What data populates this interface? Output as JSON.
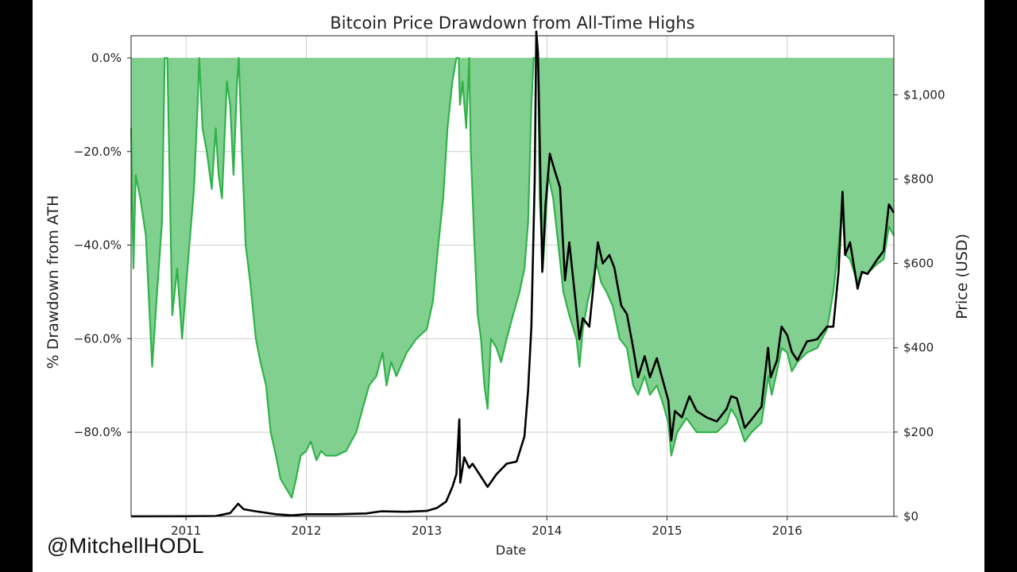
{
  "watermark": "@MitchellHODL",
  "chart_data": {
    "type": "area",
    "title": "Bitcoin Price Drawdown from All-Time Highs",
    "xlabel": "Date",
    "ylabel": "% Drawdown from ATH",
    "ylabel_right": "Price (USD)",
    "x_range": [
      "2010-07-18",
      "2016-11-20"
    ],
    "xticks": [
      "2011",
      "2012",
      "2013",
      "2014",
      "2015",
      "2016"
    ],
    "ylim": [
      -98,
      0
    ],
    "yticks": [
      "0.0%",
      "−20.0%",
      "−40.0%",
      "−60.0%",
      "−80.0%"
    ],
    "ylim_right": [
      0,
      1140
    ],
    "yticks_right": [
      "$0",
      "$200",
      "$400",
      "$600",
      "$800",
      "$1,000"
    ],
    "grid": true,
    "colors": {
      "fill": "#82d08f",
      "drawdown_line": "#2fb24a",
      "price_line": "#000000"
    },
    "series": [
      {
        "role": "drawdown",
        "axis": "left",
        "points": [
          [
            "2010-07-18",
            -15
          ],
          [
            "2010-07-25",
            -45
          ],
          [
            "2010-08-01",
            -25
          ],
          [
            "2010-08-15",
            -30
          ],
          [
            "2010-09-01",
            -38
          ],
          [
            "2010-09-20",
            -66
          ],
          [
            "2010-10-05",
            -50
          ],
          [
            "2010-10-20",
            -35
          ],
          [
            "2010-10-28",
            0
          ],
          [
            "2010-11-05",
            0
          ],
          [
            "2010-11-20",
            -55
          ],
          [
            "2010-12-05",
            -45
          ],
          [
            "2010-12-20",
            -60
          ],
          [
            "2011-01-05",
            -45
          ],
          [
            "2011-01-25",
            -28
          ],
          [
            "2011-02-05",
            -10
          ],
          [
            "2011-02-10",
            0
          ],
          [
            "2011-02-20",
            -15
          ],
          [
            "2011-03-05",
            -20
          ],
          [
            "2011-03-20",
            -28
          ],
          [
            "2011-04-01",
            -15
          ],
          [
            "2011-04-10",
            -25
          ],
          [
            "2011-04-20",
            -30
          ],
          [
            "2011-05-05",
            -5
          ],
          [
            "2011-05-15",
            -10
          ],
          [
            "2011-05-25",
            -25
          ],
          [
            "2011-06-05",
            -5
          ],
          [
            "2011-06-10",
            0
          ],
          [
            "2011-06-20",
            -20
          ],
          [
            "2011-07-01",
            -40
          ],
          [
            "2011-07-15",
            -48
          ],
          [
            "2011-08-01",
            -60
          ],
          [
            "2011-08-15",
            -65
          ],
          [
            "2011-09-01",
            -70
          ],
          [
            "2011-09-15",
            -80
          ],
          [
            "2011-10-01",
            -85
          ],
          [
            "2011-10-15",
            -90
          ],
          [
            "2011-11-01",
            -92
          ],
          [
            "2011-11-18",
            -94
          ],
          [
            "2011-12-01",
            -90
          ],
          [
            "2011-12-15",
            -85
          ],
          [
            "2012-01-01",
            -84
          ],
          [
            "2012-01-15",
            -82
          ],
          [
            "2012-02-01",
            -86
          ],
          [
            "2012-02-15",
            -84
          ],
          [
            "2012-03-01",
            -85
          ],
          [
            "2012-04-01",
            -85
          ],
          [
            "2012-05-01",
            -84
          ],
          [
            "2012-06-01",
            -80
          ],
          [
            "2012-06-20",
            -75
          ],
          [
            "2012-07-10",
            -70
          ],
          [
            "2012-08-01",
            -68
          ],
          [
            "2012-08-20",
            -63
          ],
          [
            "2012-09-01",
            -70
          ],
          [
            "2012-09-15",
            -65
          ],
          [
            "2012-10-01",
            -68
          ],
          [
            "2012-11-01",
            -63
          ],
          [
            "2012-12-01",
            -60
          ],
          [
            "2013-01-01",
            -58
          ],
          [
            "2013-01-20",
            -52
          ],
          [
            "2013-02-05",
            -40
          ],
          [
            "2013-02-20",
            -30
          ],
          [
            "2013-03-05",
            -15
          ],
          [
            "2013-03-20",
            -5
          ],
          [
            "2013-04-01",
            0
          ],
          [
            "2013-04-08",
            0
          ],
          [
            "2013-04-12",
            -10
          ],
          [
            "2013-04-20",
            -5
          ],
          [
            "2013-05-01",
            -15
          ],
          [
            "2013-05-10",
            0
          ],
          [
            "2013-05-15",
            -20
          ],
          [
            "2013-05-25",
            -38
          ],
          [
            "2013-06-05",
            -55
          ],
          [
            "2013-06-15",
            -60
          ],
          [
            "2013-06-25",
            -70
          ],
          [
            "2013-07-05",
            -75
          ],
          [
            "2013-07-15",
            -60
          ],
          [
            "2013-08-01",
            -62
          ],
          [
            "2013-08-15",
            -65
          ],
          [
            "2013-09-01",
            -60
          ],
          [
            "2013-09-20",
            -55
          ],
          [
            "2013-10-10",
            -50
          ],
          [
            "2013-10-25",
            -45
          ],
          [
            "2013-11-05",
            -35
          ],
          [
            "2013-11-15",
            -10
          ],
          [
            "2013-11-22",
            0
          ],
          [
            "2013-12-05",
            0
          ],
          [
            "2013-12-10",
            -30
          ],
          [
            "2013-12-20",
            -45
          ],
          [
            "2014-01-05",
            -25
          ],
          [
            "2014-01-20",
            -30
          ],
          [
            "2014-02-05",
            -40
          ],
          [
            "2014-02-20",
            -50
          ],
          [
            "2014-03-10",
            -55
          ],
          [
            "2014-04-01",
            -60
          ],
          [
            "2014-04-10",
            -66
          ],
          [
            "2014-04-20",
            -58
          ],
          [
            "2014-05-05",
            -52
          ],
          [
            "2014-06-01",
            -44
          ],
          [
            "2014-06-15",
            -48
          ],
          [
            "2014-07-01",
            -50
          ],
          [
            "2014-07-20",
            -53
          ],
          [
            "2014-08-10",
            -60
          ],
          [
            "2014-09-01",
            -62
          ],
          [
            "2014-09-20",
            -70
          ],
          [
            "2014-10-05",
            -72
          ],
          [
            "2014-10-25",
            -68
          ],
          [
            "2014-11-10",
            -72
          ],
          [
            "2014-12-01",
            -70
          ],
          [
            "2014-12-20",
            -74
          ],
          [
            "2015-01-05",
            -78
          ],
          [
            "2015-01-14",
            -85
          ],
          [
            "2015-02-01",
            -80
          ],
          [
            "2015-03-01",
            -77
          ],
          [
            "2015-04-01",
            -80
          ],
          [
            "2015-05-01",
            -80
          ],
          [
            "2015-06-01",
            -80
          ],
          [
            "2015-07-01",
            -78
          ],
          [
            "2015-07-15",
            -75
          ],
          [
            "2015-08-01",
            -77
          ],
          [
            "2015-08-25",
            -82
          ],
          [
            "2015-09-15",
            -80
          ],
          [
            "2015-10-15",
            -78
          ],
          [
            "2015-11-05",
            -68
          ],
          [
            "2015-11-15",
            -72
          ],
          [
            "2015-12-01",
            -67
          ],
          [
            "2015-12-15",
            -62
          ],
          [
            "2016-01-01",
            -63
          ],
          [
            "2016-01-15",
            -67
          ],
          [
            "2016-02-01",
            -65
          ],
          [
            "2016-03-01",
            -63
          ],
          [
            "2016-04-01",
            -62
          ],
          [
            "2016-05-01",
            -58
          ],
          [
            "2016-05-20",
            -50
          ],
          [
            "2016-06-05",
            -40
          ],
          [
            "2016-06-17",
            -32
          ],
          [
            "2016-06-25",
            -42
          ],
          [
            "2016-07-10",
            -43
          ],
          [
            "2016-08-01",
            -48
          ],
          [
            "2016-08-15",
            -46
          ],
          [
            "2016-09-01",
            -46
          ],
          [
            "2016-10-01",
            -44
          ],
          [
            "2016-10-20",
            -43
          ],
          [
            "2016-11-05",
            -36
          ],
          [
            "2016-11-20",
            -38
          ]
        ]
      },
      {
        "role": "price",
        "axis": "right",
        "points": [
          [
            "2010-07-18",
            0.1
          ],
          [
            "2011-01-01",
            0.3
          ],
          [
            "2011-04-01",
            1
          ],
          [
            "2011-05-15",
            8
          ],
          [
            "2011-06-08",
            30
          ],
          [
            "2011-06-25",
            17
          ],
          [
            "2011-08-01",
            12
          ],
          [
            "2011-10-01",
            5
          ],
          [
            "2011-11-18",
            2.5
          ],
          [
            "2012-01-01",
            5
          ],
          [
            "2012-04-01",
            5
          ],
          [
            "2012-07-01",
            7
          ],
          [
            "2012-08-15",
            12
          ],
          [
            "2012-11-01",
            11
          ],
          [
            "2013-01-01",
            13
          ],
          [
            "2013-02-01",
            20
          ],
          [
            "2013-03-01",
            35
          ],
          [
            "2013-03-20",
            70
          ],
          [
            "2013-04-01",
            100
          ],
          [
            "2013-04-10",
            230
          ],
          [
            "2013-04-13",
            80
          ],
          [
            "2013-04-25",
            140
          ],
          [
            "2013-05-10",
            115
          ],
          [
            "2013-05-20",
            125
          ],
          [
            "2013-06-10",
            100
          ],
          [
            "2013-07-05",
            70
          ],
          [
            "2013-08-01",
            100
          ],
          [
            "2013-09-01",
            125
          ],
          [
            "2013-10-01",
            130
          ],
          [
            "2013-10-25",
            190
          ],
          [
            "2013-11-05",
            300
          ],
          [
            "2013-11-15",
            450
          ],
          [
            "2013-11-25",
            800
          ],
          [
            "2013-11-30",
            1150
          ],
          [
            "2013-12-05",
            1100
          ],
          [
            "2013-12-10",
            900
          ],
          [
            "2013-12-18",
            580
          ],
          [
            "2013-12-28",
            740
          ],
          [
            "2014-01-10",
            860
          ],
          [
            "2014-01-25",
            820
          ],
          [
            "2014-02-10",
            780
          ],
          [
            "2014-02-25",
            560
          ],
          [
            "2014-03-10",
            650
          ],
          [
            "2014-03-25",
            540
          ],
          [
            "2014-04-10",
            420
          ],
          [
            "2014-04-20",
            470
          ],
          [
            "2014-05-10",
            450
          ],
          [
            "2014-06-05",
            650
          ],
          [
            "2014-06-20",
            600
          ],
          [
            "2014-07-10",
            620
          ],
          [
            "2014-07-25",
            590
          ],
          [
            "2014-08-15",
            500
          ],
          [
            "2014-09-01",
            480
          ],
          [
            "2014-09-20",
            400
          ],
          [
            "2014-10-05",
            330
          ],
          [
            "2014-10-25",
            380
          ],
          [
            "2014-11-10",
            330
          ],
          [
            "2014-12-01",
            375
          ],
          [
            "2014-12-20",
            320
          ],
          [
            "2015-01-05",
            275
          ],
          [
            "2015-01-14",
            180
          ],
          [
            "2015-01-25",
            250
          ],
          [
            "2015-02-15",
            235
          ],
          [
            "2015-03-10",
            285
          ],
          [
            "2015-04-01",
            250
          ],
          [
            "2015-05-01",
            235
          ],
          [
            "2015-06-01",
            225
          ],
          [
            "2015-07-01",
            255
          ],
          [
            "2015-07-15",
            285
          ],
          [
            "2015-08-01",
            280
          ],
          [
            "2015-08-25",
            210
          ],
          [
            "2015-09-15",
            230
          ],
          [
            "2015-10-15",
            260
          ],
          [
            "2015-11-04",
            400
          ],
          [
            "2015-11-12",
            330
          ],
          [
            "2015-12-01",
            370
          ],
          [
            "2015-12-15",
            450
          ],
          [
            "2016-01-01",
            430
          ],
          [
            "2016-01-15",
            390
          ],
          [
            "2016-02-01",
            370
          ],
          [
            "2016-03-01",
            415
          ],
          [
            "2016-04-01",
            420
          ],
          [
            "2016-05-01",
            450
          ],
          [
            "2016-05-20",
            450
          ],
          [
            "2016-06-05",
            580
          ],
          [
            "2016-06-17",
            770
          ],
          [
            "2016-06-25",
            620
          ],
          [
            "2016-07-10",
            650
          ],
          [
            "2016-08-02",
            540
          ],
          [
            "2016-08-15",
            580
          ],
          [
            "2016-09-01",
            575
          ],
          [
            "2016-10-01",
            610
          ],
          [
            "2016-10-20",
            630
          ],
          [
            "2016-11-05",
            740
          ],
          [
            "2016-11-20",
            720
          ]
        ]
      }
    ]
  }
}
